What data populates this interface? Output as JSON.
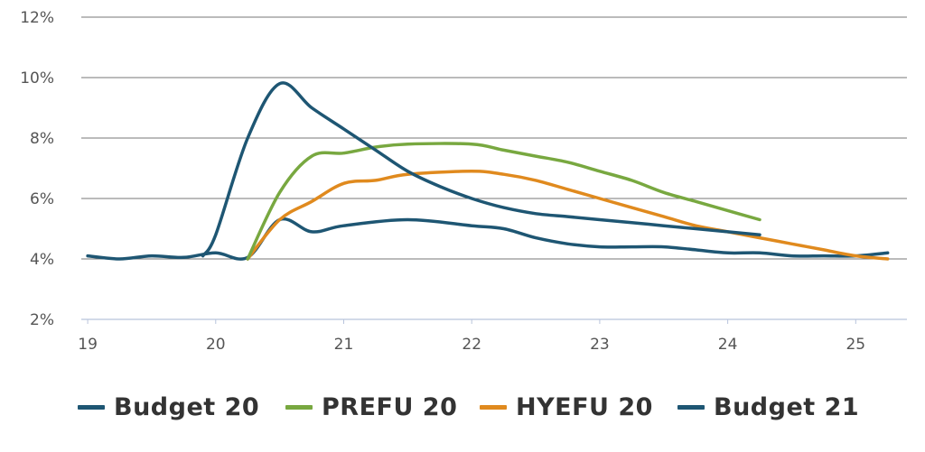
{
  "chart_data": {
    "type": "line",
    "title": "",
    "xlabel": "",
    "ylabel": "",
    "xlim": [
      18.95,
      25.4
    ],
    "ylim": [
      2,
      12
    ],
    "x_ticks": [
      {
        "value": 19,
        "label": "19"
      },
      {
        "value": 20,
        "label": "20"
      },
      {
        "value": 21,
        "label": "21"
      },
      {
        "value": 22,
        "label": "22"
      },
      {
        "value": 23,
        "label": "23"
      },
      {
        "value": 24,
        "label": "24"
      },
      {
        "value": 25,
        "label": "25"
      }
    ],
    "y_ticks": [
      {
        "value": 2,
        "label": "2%"
      },
      {
        "value": 4,
        "label": "4%"
      },
      {
        "value": 6,
        "label": "6%"
      },
      {
        "value": 8,
        "label": "8%"
      },
      {
        "value": 10,
        "label": "10%"
      },
      {
        "value": 12,
        "label": "12%"
      }
    ],
    "grid": "horizontal",
    "legend_position": "bottom",
    "series": [
      {
        "name": "Budget 20",
        "color": "#1e5673",
        "x": [
          19.0,
          19.25,
          19.5,
          19.75,
          20.0,
          20.25,
          20.5,
          20.75,
          21.0,
          21.5,
          22.0,
          22.25,
          22.5,
          22.75,
          23.0,
          23.25,
          23.5,
          23.75,
          24.0,
          24.25,
          24.5,
          24.75,
          25.0,
          25.25
        ],
        "y": [
          4.1,
          4.0,
          4.1,
          4.05,
          4.2,
          4.05,
          5.3,
          4.9,
          5.1,
          5.3,
          5.1,
          5.0,
          4.7,
          4.5,
          4.4,
          4.4,
          4.4,
          4.3,
          4.2,
          4.2,
          4.1,
          4.1,
          4.1,
          4.2
        ]
      },
      {
        "name": "PREFU 20",
        "color": "#78a840",
        "x": [
          20.25,
          20.5,
          20.75,
          21.0,
          21.25,
          21.5,
          22.0,
          22.25,
          22.5,
          22.75,
          23.0,
          23.25,
          23.5,
          23.75,
          24.0,
          24.25
        ],
        "y": [
          4.0,
          6.2,
          7.4,
          7.5,
          7.7,
          7.8,
          7.8,
          7.6,
          7.4,
          7.2,
          6.9,
          6.6,
          6.2,
          5.9,
          5.6,
          5.3
        ]
      },
      {
        "name": "HYEFU 20",
        "color": "#e08a1e",
        "x": [
          20.25,
          20.5,
          20.75,
          21.0,
          21.25,
          21.5,
          22.0,
          22.25,
          22.5,
          22.75,
          23.0,
          23.25,
          23.5,
          23.75,
          24.0,
          24.25,
          24.5,
          24.75,
          25.0,
          25.25
        ],
        "y": [
          4.0,
          5.3,
          5.9,
          6.5,
          6.6,
          6.8,
          6.9,
          6.8,
          6.6,
          6.3,
          6.0,
          5.7,
          5.4,
          5.1,
          4.9,
          4.7,
          4.5,
          4.3,
          4.1,
          4.0
        ]
      },
      {
        "name": "Budget 21",
        "color": "#1e5673",
        "x": [
          19.9,
          20.0,
          20.25,
          20.5,
          20.75,
          21.0,
          21.25,
          21.5,
          21.75,
          22.0,
          22.25,
          22.5,
          22.75,
          23.0,
          23.25,
          23.5,
          23.75,
          24.0,
          24.25
        ],
        "y": [
          4.1,
          4.8,
          8.0,
          9.8,
          9.0,
          8.3,
          7.6,
          6.9,
          6.4,
          6.0,
          5.7,
          5.5,
          5.4,
          5.3,
          5.2,
          5.1,
          5.0,
          4.9,
          4.8
        ]
      }
    ]
  },
  "legend": {
    "items": [
      {
        "label": "Budget 20",
        "color": "#1e5673"
      },
      {
        "label": "PREFU 20",
        "color": "#78a840"
      },
      {
        "label": "HYEFU 20",
        "color": "#e08a1e"
      },
      {
        "label": "Budget 21",
        "color": "#1e5673"
      }
    ]
  }
}
